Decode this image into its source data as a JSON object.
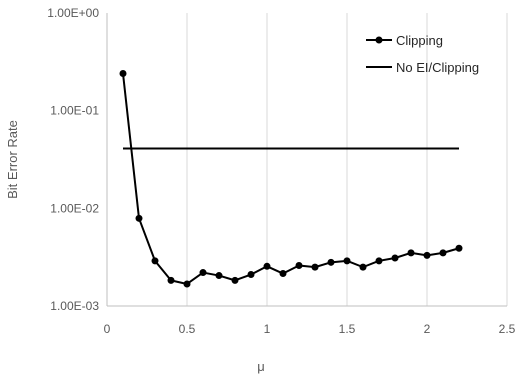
{
  "chart_data": {
    "type": "line",
    "title": "",
    "xlabel": "μ",
    "ylabel": "Bit Error Rate",
    "xlim": [
      0,
      2.5
    ],
    "ylim": [
      0.001,
      1
    ],
    "yscale": "log",
    "x_ticks": [
      "0",
      "0.5",
      "1",
      "1.5",
      "2",
      "2.5"
    ],
    "y_ticks": [
      "1.00E-03",
      "1.00E-02",
      "1.00E-01",
      "1.00E+00"
    ],
    "grid": "vertical gridlines only",
    "legend_position": "top-right",
    "series": [
      {
        "name": "Clipping",
        "color": "#000000",
        "marker": "circle",
        "x": [
          0.1,
          0.2,
          0.3,
          0.4,
          0.5,
          0.6,
          0.7,
          0.8,
          0.9,
          1.0,
          1.1,
          1.2,
          1.3,
          1.4,
          1.5,
          1.6,
          1.7,
          1.8,
          1.9,
          2.0,
          2.1,
          2.2
        ],
        "y": [
          0.24,
          0.0079,
          0.0029,
          0.00183,
          0.00168,
          0.0022,
          0.00205,
          0.00183,
          0.0021,
          0.00255,
          0.00215,
          0.0026,
          0.0025,
          0.0028,
          0.0029,
          0.0025,
          0.0029,
          0.0031,
          0.0035,
          0.0033,
          0.0035,
          0.0039
        ]
      },
      {
        "name": "No EI/Clipping",
        "color": "#000000",
        "marker": "none",
        "x": [
          0.1,
          2.2
        ],
        "y": [
          0.041,
          0.041
        ]
      }
    ]
  }
}
